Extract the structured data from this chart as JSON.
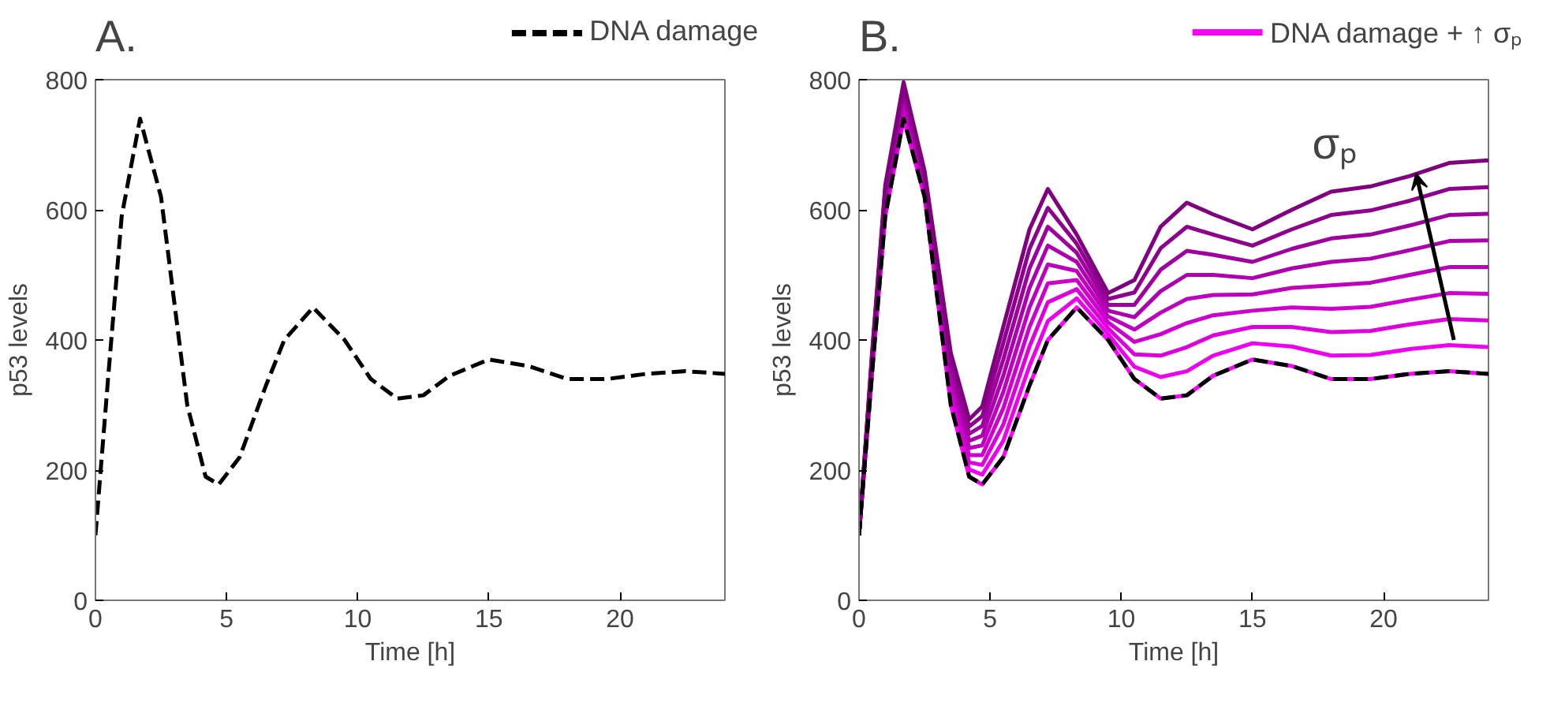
{
  "chart_data": [
    {
      "type": "line",
      "title": "A.",
      "xlabel": "Time [h]",
      "ylabel": "p53 levels",
      "xlim": [
        0,
        24
      ],
      "ylim": [
        0,
        800
      ],
      "xticks": [
        0,
        5,
        10,
        15,
        20
      ],
      "yticks": [
        0,
        200,
        400,
        600,
        800
      ],
      "legend": "top right",
      "x": [
        0,
        0.5,
        1,
        1.7,
        2.5,
        3.5,
        4.2,
        4.7,
        5.5,
        6.5,
        7.2,
        8.3,
        9.5,
        10.5,
        11.5,
        12.5,
        13.5,
        15,
        16.5,
        18,
        19.5,
        21,
        22.5,
        24
      ],
      "series": [
        {
          "name": "DNA damage",
          "color": "#000000",
          "line_style": "dashed",
          "values": [
            100,
            350,
            590,
            740,
            620,
            300,
            190,
            178,
            220,
            330,
            400,
            450,
            400,
            340,
            310,
            315,
            345,
            370,
            360,
            340,
            340,
            348,
            352,
            348
          ]
        }
      ]
    },
    {
      "type": "line",
      "title": "B.",
      "xlabel": "Time [h]",
      "ylabel": "p53 levels",
      "xlim": [
        0,
        24
      ],
      "ylim": [
        0,
        800
      ],
      "xticks": [
        0,
        5,
        10,
        15,
        20
      ],
      "yticks": [
        0,
        200,
        400,
        600,
        800
      ],
      "legend": "top right",
      "annotations": [
        "σₚ"
      ],
      "x": [
        0,
        0.5,
        1,
        1.7,
        2.5,
        3.5,
        4.2,
        4.7,
        5.5,
        6.5,
        7.2,
        8.3,
        9.5,
        10.5,
        11.5,
        12.5,
        13.5,
        15,
        16.5,
        18,
        19.5,
        21,
        22.5,
        24
      ],
      "series": [
        {
          "name": "DNA damage + ↑ σₚ",
          "color": "#ff00ff",
          "values": [
            100,
            350,
            590,
            740,
            620,
            300,
            190,
            178,
            220,
            330,
            400,
            450,
            400,
            340,
            310,
            315,
            345,
            370,
            360,
            340,
            340,
            348,
            352,
            348
          ]
        },
        {
          "color": "#ef00ef",
          "values": [
            100,
            354,
            596,
            747,
            625,
            310,
            201,
            193,
            245,
            360,
            429,
            464,
            409,
            359,
            343,
            352,
            376,
            395,
            390,
            376,
            377,
            386,
            392,
            389
          ]
        },
        {
          "color": "#df00df",
          "values": [
            100,
            358,
            602,
            754,
            630,
            320,
            212,
            208,
            270,
            390,
            458,
            478,
            418,
            378,
            376,
            389,
            407,
            420,
            420,
            412,
            414,
            424,
            432,
            430
          ]
        },
        {
          "color": "#cf00cf",
          "values": [
            100,
            362,
            608,
            761,
            635,
            330,
            223,
            223,
            295,
            420,
            487,
            492,
            427,
            397,
            409,
            426,
            438,
            445,
            450,
            448,
            451,
            462,
            472,
            471
          ]
        },
        {
          "color": "#bf00bf",
          "values": [
            100,
            366,
            614,
            768,
            640,
            340,
            234,
            238,
            320,
            450,
            516,
            506,
            436,
            416,
            442,
            463,
            469,
            470,
            480,
            484,
            488,
            500,
            512,
            512
          ]
        },
        {
          "color": "#af00af",
          "values": [
            100,
            370,
            620,
            775,
            645,
            350,
            245,
            253,
            345,
            480,
            545,
            520,
            445,
            435,
            475,
            500,
            500,
            495,
            510,
            520,
            525,
            538,
            552,
            553
          ]
        },
        {
          "color": "#9f009f",
          "values": [
            100,
            374,
            626,
            782,
            650,
            360,
            256,
            268,
            370,
            510,
            574,
            534,
            454,
            454,
            508,
            537,
            531,
            520,
            540,
            556,
            562,
            576,
            592,
            594
          ]
        },
        {
          "color": "#8f008f",
          "values": [
            100,
            378,
            632,
            789,
            655,
            370,
            267,
            283,
            395,
            540,
            603,
            548,
            463,
            473,
            541,
            574,
            562,
            545,
            570,
            592,
            599,
            614,
            632,
            635
          ]
        },
        {
          "color": "#800080",
          "values": [
            100,
            382,
            638,
            796,
            660,
            380,
            278,
            298,
            420,
            570,
            632,
            562,
            472,
            492,
            574,
            611,
            593,
            570,
            600,
            628,
            636,
            652,
            672,
            676
          ]
        },
        {
          "color": "#000000",
          "line_style": "dashed",
          "values": [
            100,
            350,
            590,
            740,
            620,
            300,
            190,
            178,
            220,
            330,
            400,
            450,
            400,
            340,
            310,
            315,
            345,
            370,
            360,
            340,
            340,
            348,
            352,
            348
          ]
        }
      ]
    }
  ]
}
